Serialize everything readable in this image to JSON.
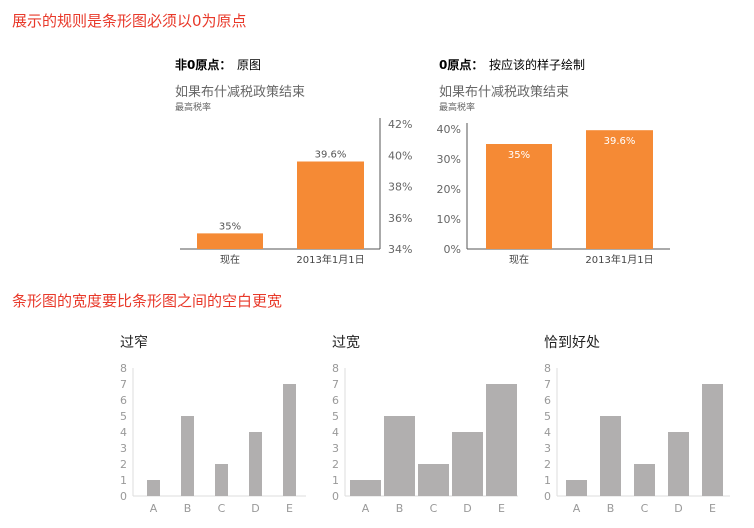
{
  "headings": [
    "展示的规则是条形图必须以0为原点",
    "条形图的宽度要比条形图之间的空白更宽"
  ],
  "colors": {
    "accent": "#f58a35",
    "gray_bar": "#b1afaf",
    "heading": "#e8392a",
    "axis": "#555555"
  },
  "chart_data": [
    {
      "type": "bar",
      "panel_title_bold": "非0原点：",
      "panel_title": "原图",
      "title": "如果布什减税政策结束",
      "subtitle": "最高税率",
      "categories": [
        "现在",
        "2013年1月1日"
      ],
      "values": [
        35,
        39.6
      ],
      "data_labels": [
        "35%",
        "39.6%"
      ],
      "ylim": [
        34,
        42
      ],
      "yticks": [
        "34%",
        "36%",
        "38%",
        "40%",
        "42%"
      ],
      "ytick_values": [
        34,
        36,
        38,
        40,
        42
      ],
      "yaxis": "right"
    },
    {
      "type": "bar",
      "panel_title_bold": "0原点：",
      "panel_title": "按应该的样子绘制",
      "title": "如果布什减税政策结束",
      "subtitle": "最高税率",
      "categories": [
        "现在",
        "2013年1月1日"
      ],
      "values": [
        35,
        39.6
      ],
      "data_labels": [
        "35%",
        "39.6%"
      ],
      "ylim": [
        0,
        40
      ],
      "yticks": [
        "0%",
        "10%",
        "20%",
        "30%",
        "40%"
      ],
      "ytick_values": [
        0,
        10,
        20,
        30,
        40
      ],
      "yaxis": "left"
    },
    {
      "type": "bar",
      "title": "过窄",
      "categories": [
        "A",
        "B",
        "C",
        "D",
        "E"
      ],
      "values": [
        1,
        5,
        2,
        4,
        7
      ],
      "ylim": [
        0,
        8
      ],
      "yticks": [
        "0",
        "1",
        "2",
        "3",
        "4",
        "5",
        "6",
        "7",
        "8"
      ]
    },
    {
      "type": "bar",
      "title": "过宽",
      "categories": [
        "A",
        "B",
        "C",
        "D",
        "E"
      ],
      "values": [
        1,
        5,
        2,
        4,
        7
      ],
      "ylim": [
        0,
        8
      ],
      "yticks": [
        "0",
        "1",
        "2",
        "3",
        "4",
        "5",
        "6",
        "7",
        "8"
      ]
    },
    {
      "type": "bar",
      "title": "恰到好处",
      "categories": [
        "A",
        "B",
        "C",
        "D",
        "E"
      ],
      "values": [
        1,
        5,
        2,
        4,
        7
      ],
      "ylim": [
        0,
        8
      ],
      "yticks": [
        "0",
        "1",
        "2",
        "3",
        "4",
        "5",
        "6",
        "7",
        "8"
      ]
    }
  ]
}
